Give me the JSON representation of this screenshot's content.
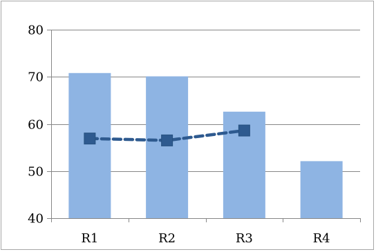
{
  "chart_data": {
    "type": "bar",
    "categories": [
      "R1",
      "R2",
      "R3",
      "R4"
    ],
    "ylim": [
      40,
      80
    ],
    "yticks": [
      40,
      50,
      60,
      70,
      80
    ],
    "ytick_labels": [
      "40",
      "50",
      "60",
      "70",
      "80"
    ],
    "grid": true,
    "series": [
      {
        "type": "bar",
        "color": "#8eb4e3",
        "values": [
          70.8,
          70.1,
          62.6,
          52.1
        ]
      },
      {
        "type": "line",
        "style": "dashed",
        "marker": "square",
        "color": "#2e5a8f",
        "values": [
          56.9,
          56.5,
          58.6,
          null
        ]
      }
    ],
    "legend": "none",
    "title": "",
    "xlabel": "",
    "ylabel": ""
  }
}
